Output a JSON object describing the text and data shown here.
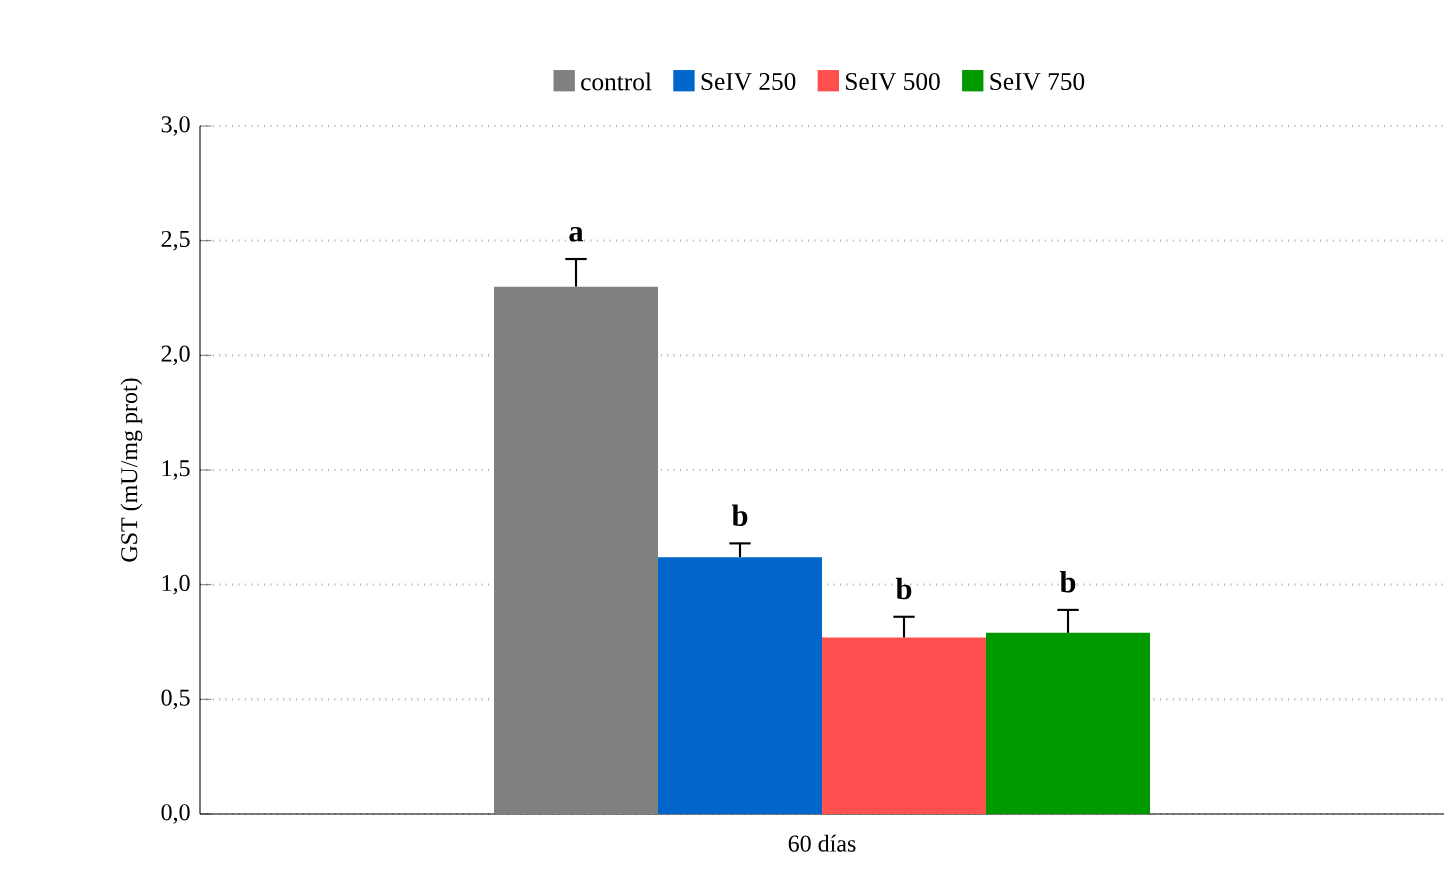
{
  "chart_data": {
    "type": "bar",
    "ylabel": "GST (mU/mg prot)",
    "categories": [
      "60 días"
    ],
    "series": [
      {
        "name": "control",
        "color": "#808080",
        "values": [
          2.3
        ],
        "errors": [
          0.12
        ]
      },
      {
        "name": "SeIV 250",
        "color": "#0066cc",
        "values": [
          1.12
        ],
        "errors": [
          0.06
        ]
      },
      {
        "name": "SeIV 500",
        "color": "#ff5050",
        "values": [
          0.77
        ],
        "errors": [
          0.09
        ]
      },
      {
        "name": "SeIV 750",
        "color": "#009900",
        "values": [
          0.79
        ],
        "errors": [
          0.1
        ]
      }
    ],
    "ylim": [
      0,
      3.0
    ],
    "yticks": [
      {
        "value": 0,
        "label": "0,0"
      },
      {
        "value": 0.5,
        "label": "0,5"
      },
      {
        "value": 1.0,
        "label": "1,0"
      },
      {
        "value": 1.5,
        "label": "1,5"
      },
      {
        "value": 2.0,
        "label": "2,0"
      },
      {
        "value": 2.5,
        "label": "2,5"
      },
      {
        "value": 3.0,
        "label": "3,0"
      }
    ],
    "grid": "y",
    "legend": "top",
    "annotations": [
      "a",
      "b",
      "b",
      "b"
    ]
  }
}
